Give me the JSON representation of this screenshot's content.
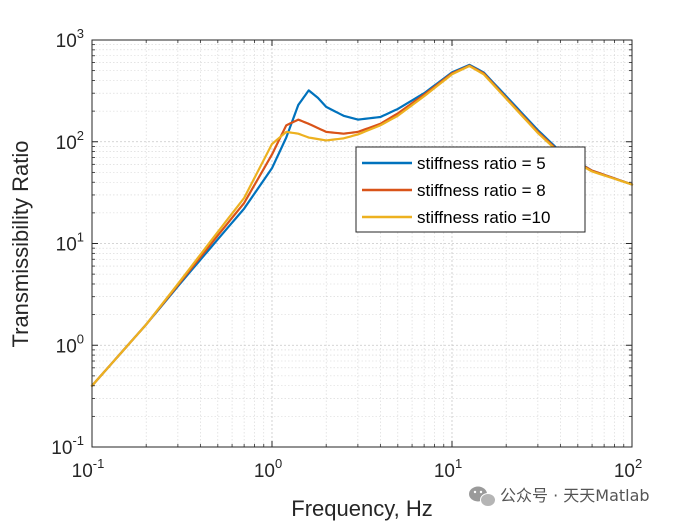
{
  "chart_data": {
    "type": "line",
    "xscale": "log",
    "yscale": "log",
    "xlim": [
      0.1,
      100
    ],
    "ylim": [
      0.1,
      1000
    ],
    "grid": true,
    "minor_grid": true,
    "xlabel": "Frequency, Hz",
    "ylabel": "Transmissibility Ratio",
    "legend_position": "upper-right",
    "xticks": [
      {
        "base": "10",
        "exp": "-1",
        "value": 0.1
      },
      {
        "base": "10",
        "exp": "0",
        "value": 1
      },
      {
        "base": "10",
        "exp": "1",
        "value": 10
      },
      {
        "base": "10",
        "exp": "2",
        "value": 100
      }
    ],
    "yticks": [
      {
        "base": "10",
        "exp": "-1",
        "value": 0.1
      },
      {
        "base": "10",
        "exp": "0",
        "value": 1
      },
      {
        "base": "10",
        "exp": "1",
        "value": 10
      },
      {
        "base": "10",
        "exp": "2",
        "value": 100
      },
      {
        "base": "10",
        "exp": "3",
        "value": 1000
      }
    ],
    "series": [
      {
        "name": "stiffness ratio = 5",
        "color": "#0072BD",
        "x": [
          0.1,
          0.2,
          0.3,
          0.5,
          0.7,
          1.0,
          1.2,
          1.4,
          1.6,
          1.8,
          2.0,
          2.5,
          3.0,
          4.0,
          5.0,
          7.0,
          10.0,
          12.5,
          15.0,
          20.0,
          30.0,
          40.0,
          60.0,
          100.0
        ],
        "y": [
          0.4,
          1.6,
          3.8,
          11,
          22,
          55,
          110,
          230,
          320,
          270,
          220,
          180,
          165,
          175,
          210,
          300,
          480,
          570,
          480,
          280,
          130,
          80,
          52,
          38
        ]
      },
      {
        "name": "stiffness ratio = 8",
        "color": "#D95319",
        "x": [
          0.1,
          0.2,
          0.3,
          0.5,
          0.7,
          1.0,
          1.2,
          1.4,
          1.6,
          2.0,
          2.5,
          3.0,
          4.0,
          5.0,
          7.0,
          10.0,
          12.5,
          15.0,
          20.0,
          30.0,
          40.0,
          60.0,
          100.0
        ],
        "y": [
          0.4,
          1.6,
          3.9,
          12,
          25,
          75,
          145,
          165,
          150,
          125,
          120,
          125,
          150,
          190,
          290,
          470,
          560,
          470,
          270,
          125,
          78,
          52,
          38
        ]
      },
      {
        "name": "stiffness ratio =10",
        "color": "#EDB120",
        "x": [
          0.1,
          0.2,
          0.3,
          0.5,
          0.7,
          1.0,
          1.2,
          1.4,
          1.6,
          2.0,
          2.5,
          3.0,
          4.0,
          5.0,
          7.0,
          10.0,
          12.5,
          15.0,
          20.0,
          30.0,
          40.0,
          60.0,
          100.0
        ],
        "y": [
          0.4,
          1.6,
          4.0,
          13,
          28,
          95,
          125,
          120,
          110,
          103,
          108,
          118,
          145,
          180,
          280,
          460,
          555,
          460,
          265,
          122,
          76,
          51,
          38
        ]
      }
    ]
  },
  "watermark": {
    "text": "公众号 · 天天Matlab"
  }
}
